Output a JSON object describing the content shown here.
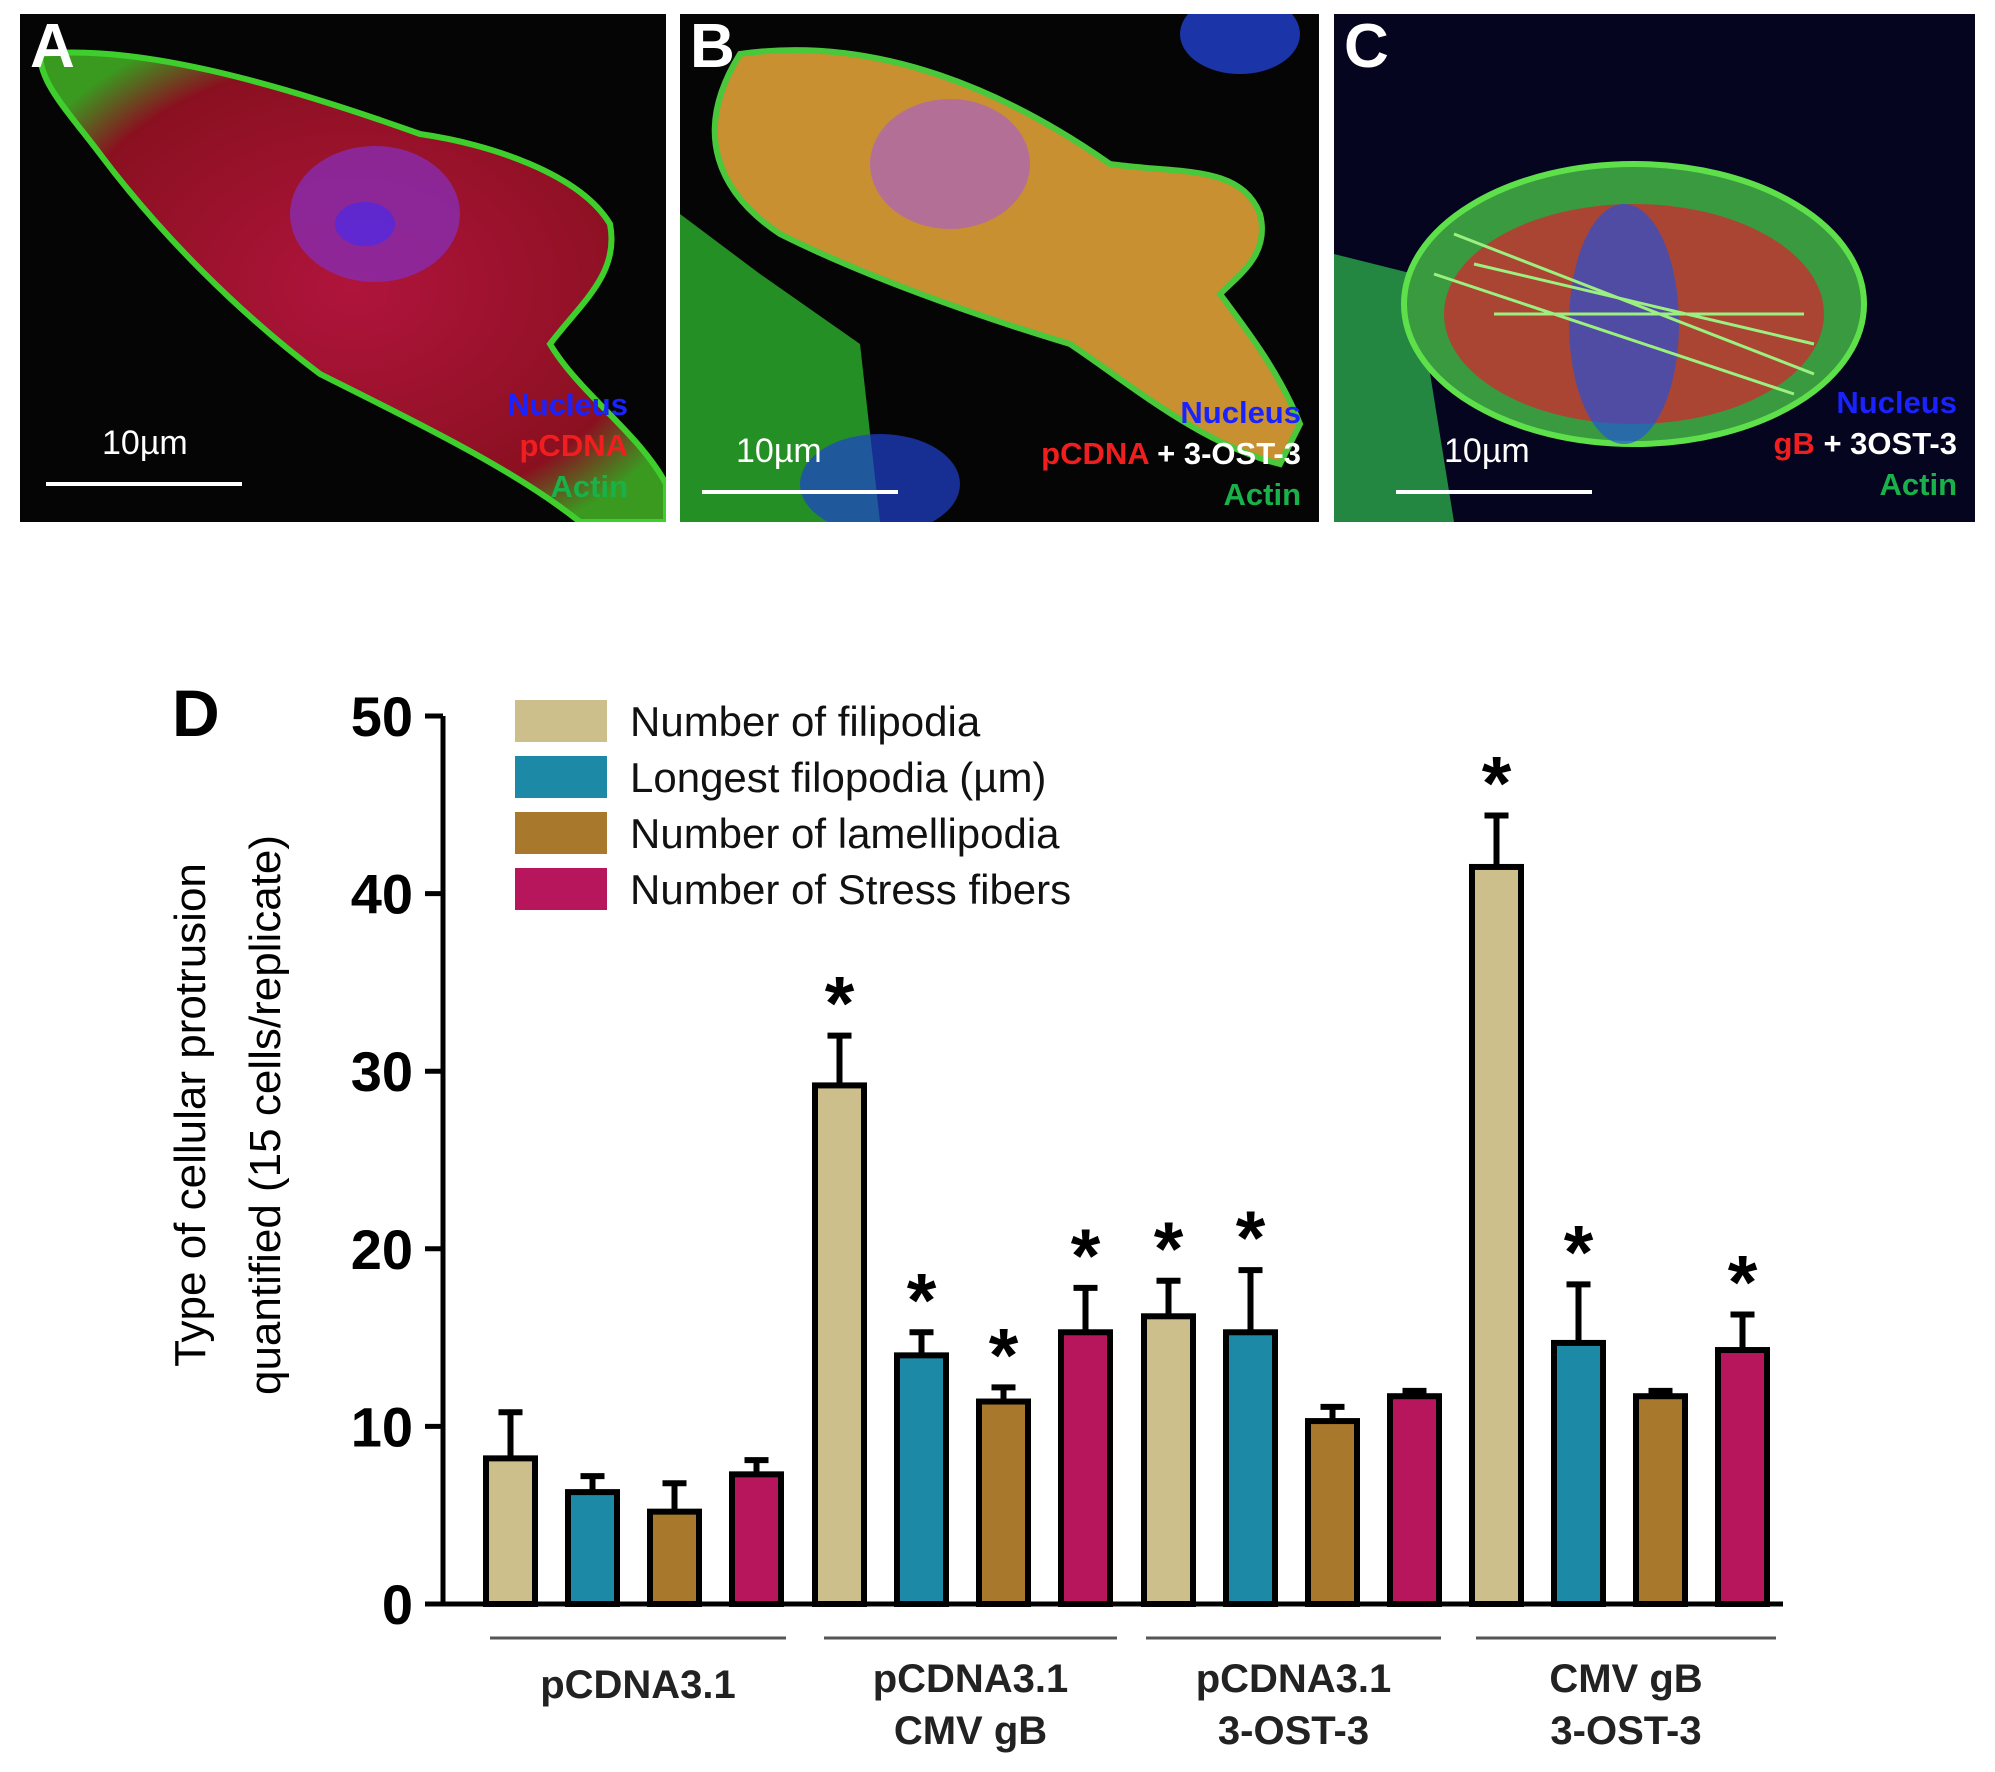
{
  "panels": [
    {
      "letter": "A",
      "scale": "10µm",
      "legend": [
        [
          {
            "text": "Nucleus",
            "color": "blue"
          }
        ],
        [
          {
            "text": "pCDNA",
            "color": "red"
          }
        ],
        [
          {
            "text": "Actin",
            "color": "green"
          }
        ]
      ]
    },
    {
      "letter": "B",
      "scale": "10µm",
      "legend": [
        [
          {
            "text": "Nucleus",
            "color": "blue"
          }
        ],
        [
          {
            "text": "pCDNA",
            "color": "red"
          },
          {
            "text": " + 3-OST-3",
            "color": "white"
          }
        ],
        [
          {
            "text": "Actin",
            "color": "green"
          }
        ]
      ]
    },
    {
      "letter": "C",
      "scale": "10µm",
      "legend": [
        [
          {
            "text": "Nucleus",
            "color": "blue"
          }
        ],
        [
          {
            "text": "gB",
            "color": "red"
          },
          {
            "text": " + 3OST-3",
            "color": "white"
          }
        ],
        [
          {
            "text": "Actin",
            "color": "green"
          }
        ]
      ]
    }
  ],
  "chart_panel_letter": "D",
  "chart_data": {
    "type": "bar",
    "ylabel_lines": [
      "Type of cellular protrusion",
      "quantified (15 cells/replicate)"
    ],
    "ylim": [
      0,
      50
    ],
    "yticks": [
      0,
      10,
      20,
      30,
      40,
      50
    ],
    "legend_position": "top-left",
    "groups": [
      [
        "pCDNA3.1"
      ],
      [
        "pCDNA3.1",
        "CMV gB"
      ],
      [
        "pCDNA3.1",
        "3-OST-3"
      ],
      [
        "CMV gB",
        "3-OST-3"
      ]
    ],
    "series": [
      {
        "name": "Number of filipodia",
        "color": "#cdbf8c",
        "values": [
          8.2,
          29.2,
          16.2,
          41.5
        ],
        "errors": [
          2.6,
          2.8,
          2.0,
          2.9
        ],
        "significant": [
          false,
          true,
          true,
          true
        ]
      },
      {
        "name": "Longest filopodia (µm)",
        "color": "#1c8aa6",
        "values": [
          6.3,
          14.0,
          15.3,
          14.7
        ],
        "errors": [
          0.9,
          1.3,
          3.5,
          3.3
        ],
        "significant": [
          false,
          true,
          true,
          true
        ]
      },
      {
        "name": "Number of lamellipodia",
        "color": "#a8782c",
        "values": [
          5.2,
          11.4,
          10.3,
          11.7
        ],
        "errors": [
          1.6,
          0.8,
          0.8,
          0.3
        ],
        "significant": [
          false,
          true,
          false,
          false
        ]
      },
      {
        "name": "Number of Stress fibers",
        "color": "#b8165c",
        "values": [
          7.3,
          15.3,
          11.7,
          14.3
        ],
        "errors": [
          0.8,
          2.5,
          0.3,
          2.0
        ],
        "significant": [
          false,
          true,
          false,
          true
        ]
      }
    ],
    "significance_marker": "*"
  }
}
